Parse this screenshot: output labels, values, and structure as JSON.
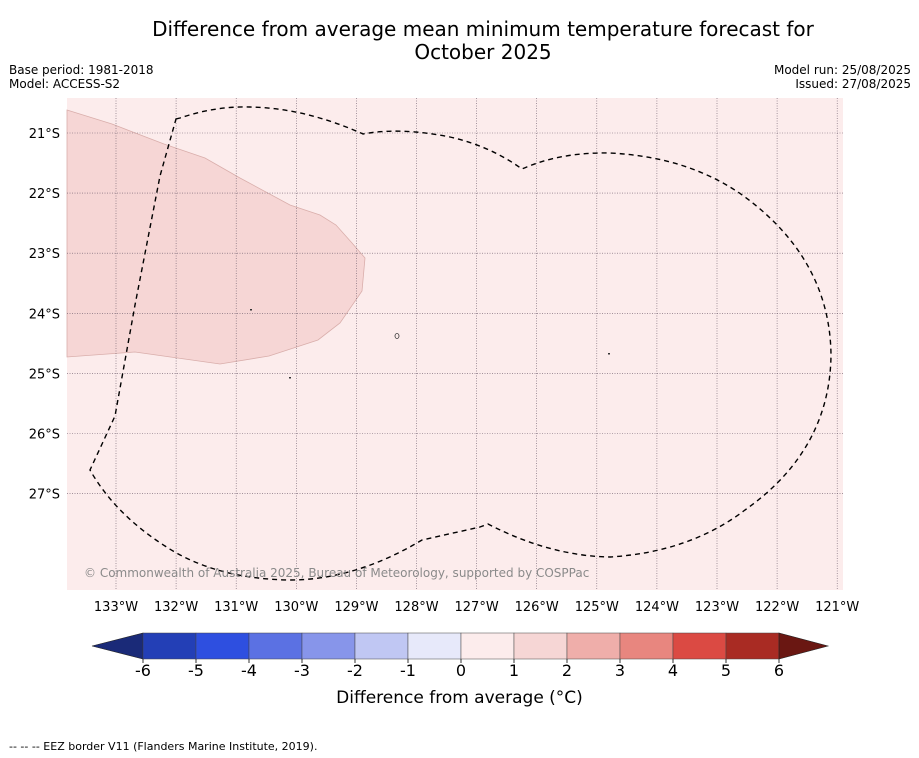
{
  "title_line1": "Difference from average mean minimum temperature forecast for",
  "title_line2": "October 2025",
  "base_period": "Base period: 1981-2018",
  "model": "Model: ACCESS-S2",
  "model_run": "Model run: 25/08/2025",
  "issued": "Issued: 27/08/2025",
  "copyright": "© Commonwealth of Australia 2025, Bureau of Meteorology, supported by COSPPac",
  "lat_labels": [
    "21°S",
    "22°S",
    "23°S",
    "24°S",
    "25°S",
    "26°S",
    "27°S"
  ],
  "lon_labels": [
    "133°W",
    "132°W",
    "131°W",
    "130°W",
    "129°W",
    "128°W",
    "127°W",
    "126°W",
    "125°W",
    "124°W",
    "123°W",
    "122°W",
    "121°W"
  ],
  "colorbar": {
    "ticks": [
      "-6",
      "-5",
      "-4",
      "-3",
      "-2",
      "-1",
      "0",
      "1",
      "2",
      "3",
      "4",
      "5",
      "6"
    ],
    "colors": [
      "#233fb6",
      "#2e4fe0",
      "#5b71e3",
      "#8795ea",
      "#c0c7f3",
      "#e7e9fa",
      "#fcecec",
      "#f6d6d5",
      "#efaeaa",
      "#e8867f",
      "#db4a43",
      "#a92b23"
    ],
    "under_color": "#1a2a78",
    "over_color": "#6a1712",
    "label": "Difference from average (°C)"
  },
  "map": {
    "background_category": "0 to 1",
    "background_color": "#fcecec",
    "region_category": "1 to 2",
    "region_color": "#f6d6d5"
  },
  "footnote": "--  --  -- EEZ border V11 (Flanders Marine Institute, 2019)."
}
